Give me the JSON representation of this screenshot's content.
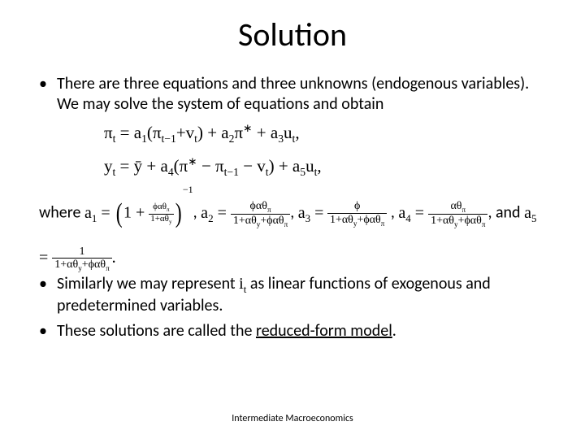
{
  "title": "Solution",
  "bullets": {
    "b1": "There are three equations and three unknowns (endogenous variables). We may solve the system of equations and obtain",
    "b2_pre": "Similarly we may represent ",
    "b2_var": "i",
    "b2_sub": "t",
    "b2_post": " as linear functions of exogenous and predetermined variables.",
    "b3_pre": "These solutions are called the ",
    "b3_u": "reduced-form model",
    "b3_post": "."
  },
  "eq1": {
    "lhs_var": "π",
    "lhs_sub": "t",
    "rhs": " = a",
    "a1sub": "1",
    "p_open": "(",
    "term1_var": "π",
    "term1_sub": "t−1",
    "plus1": "+v",
    "v_sub": "t",
    "p_close": ") + a",
    "a2sub": "2",
    "pi_star": "π",
    "star": "∗",
    "plus3": " + a",
    "a3sub": "3",
    "u": "u",
    "u_sub": "t",
    "comma": ","
  },
  "eq2": {
    "lhs_var": "y",
    "lhs_sub": "t",
    "eq": " = ȳ + a",
    "a4sub": "4",
    "p_open": "(",
    "pi": "π",
    "star": "∗",
    "minus": " − π",
    "pi_sub": "t−1",
    "minus2": " − v",
    "v_sub": "t",
    "p_close": ") + a",
    "a5sub": "5",
    "u": "u",
    "u_sub": "t",
    "comma": ","
  },
  "where": {
    "pre": "where ",
    "a1": "a",
    "a1sub": "1",
    "eq1": " = ",
    "one": "1 + ",
    "inner_num": "ϕαθ",
    "inner_num_sub": "π",
    "inner_den": "1+αθ",
    "inner_den_sub": "y",
    "exp": "−1",
    "c1": ", ",
    "a2": "a",
    "a2sub": "2",
    "eq2": " = ",
    "f2_num": "ϕαθ",
    "f2_num_sub": "π",
    "f2_den1": "1+αθ",
    "f2_den1_sub": "y",
    "f2_den2": "+ϕαθ",
    "f2_den2_sub": "π",
    "c2": ", ",
    "a3": "a",
    "a3sub": "3",
    "eq3": " =",
    "f3_num": "ϕ",
    "f3_den1": "1+αθ",
    "f3_den1_sub": "y",
    "f3_den2": "+ϕαθ",
    "f3_den2_sub": "π",
    "c3": " , ",
    "a4": "a",
    "a4sub": "4",
    "eq4": " = ",
    "f4_num": "αθ",
    "f4_num_sub": "π",
    "f4_den1": "1+αθ",
    "f4_den1_sub": "y",
    "f4_den2": "+ϕαθ",
    "f4_den2_sub": "π",
    "c4": ", and ",
    "a5": "a",
    "a5sub": "5",
    "eq5": " = ",
    "f5_num": "1",
    "f5_den1": "1+αθ",
    "f5_den1_sub": "y",
    "f5_den2": "+ϕαθ",
    "f5_den2_sub": "π",
    "c5": "."
  },
  "footer": "Intermediate Macroeconomics",
  "colors": {
    "text": "#000000",
    "bg": "#ffffff"
  }
}
